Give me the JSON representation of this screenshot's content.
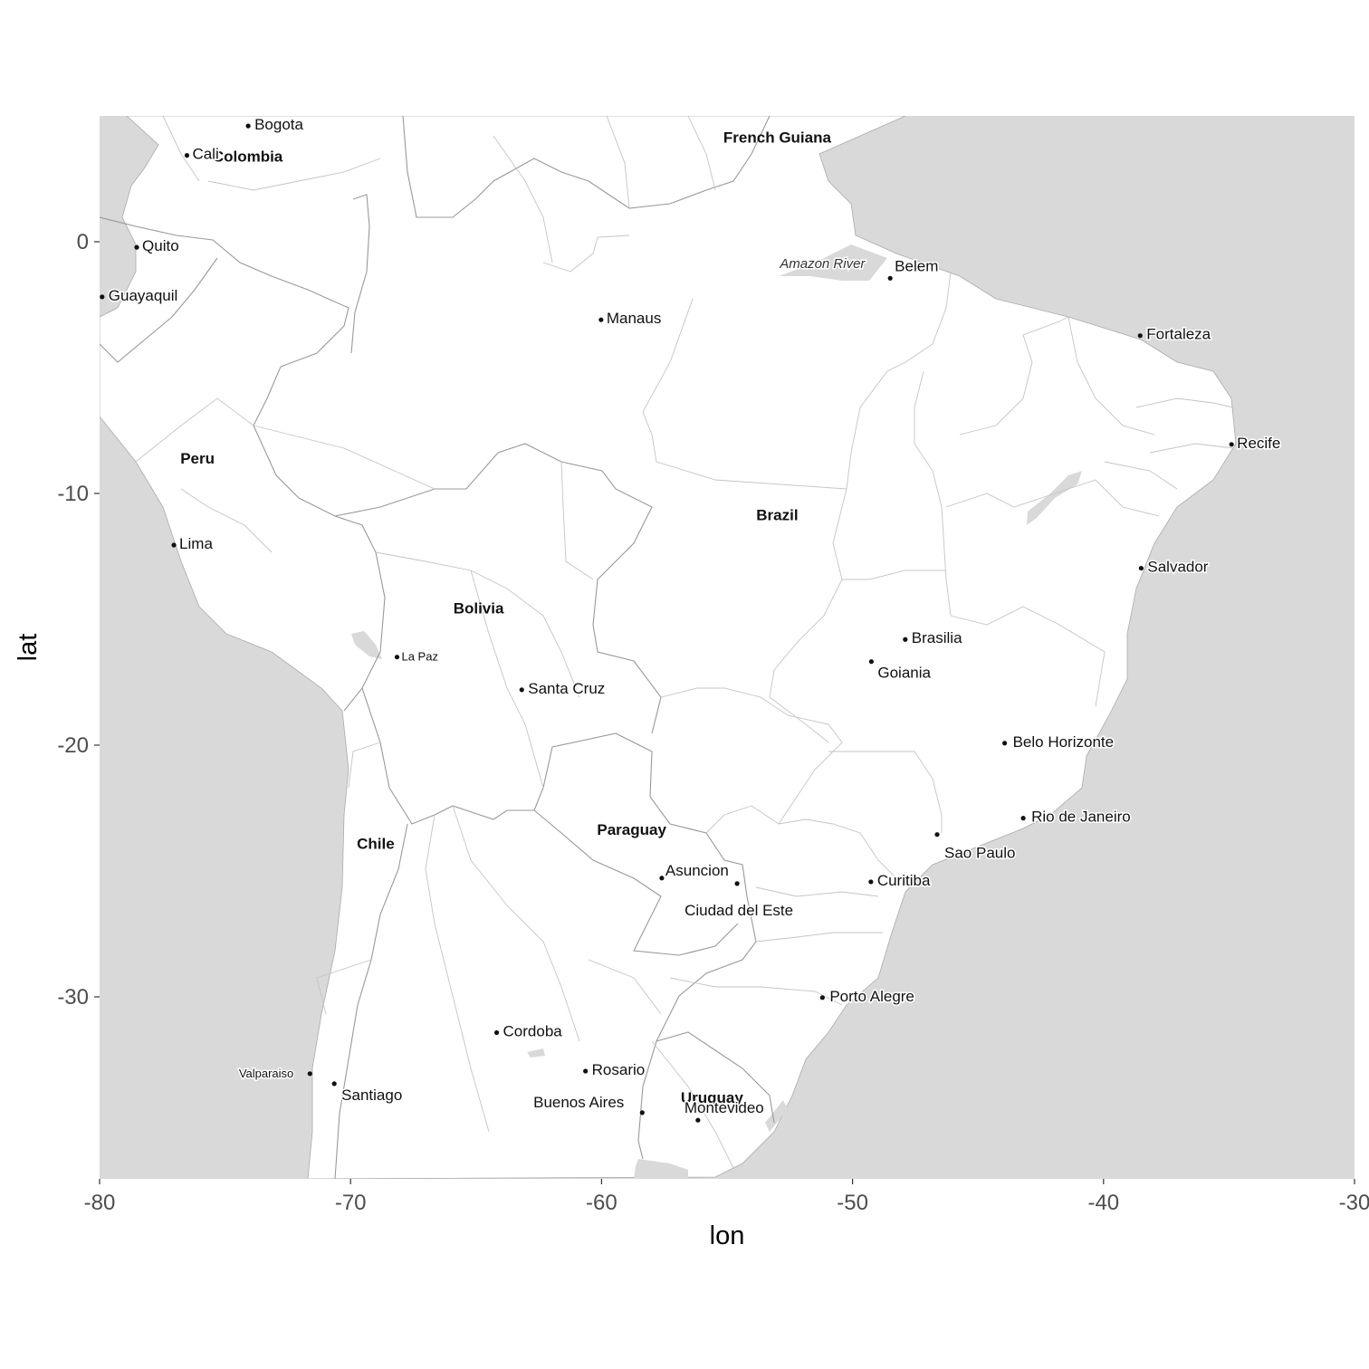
{
  "map": {
    "xlabel": "lon",
    "ylabel": "lat",
    "xlim": [
      -80,
      -30
    ],
    "ylim": [
      -37.5,
      4.9
    ],
    "x_ticks": [
      -80,
      -70,
      -60,
      -50,
      -40,
      -30
    ],
    "y_ticks": [
      0,
      -10,
      -20,
      -30
    ],
    "colors": {
      "ocean": "#d9d9d9",
      "land": "#ffffff",
      "country_border": "#999999",
      "state_border": "#c4c4c4",
      "point": "#111111"
    },
    "countries": [
      {
        "name": "Colombia",
        "lon": -74.1,
        "lat": 3.4
      },
      {
        "name": "French Guiana",
        "lon": -53.0,
        "lat": 4.15
      },
      {
        "name": "Peru",
        "lon": -76.1,
        "lat": -8.6
      },
      {
        "name": "Brazil",
        "lon": -53.0,
        "lat": -10.85
      },
      {
        "name": "Bolivia",
        "lon": -64.9,
        "lat": -14.55
      },
      {
        "name": "Chile",
        "lon": -69.0,
        "lat": -23.9
      },
      {
        "name": "Paraguay",
        "lon": -58.8,
        "lat": -23.35
      },
      {
        "name": "Uruguay",
        "lon": -55.6,
        "lat": -34.0
      }
    ],
    "cities": [
      {
        "name": "Bogota",
        "lon": -74.08,
        "lat": 4.6
      },
      {
        "name": "Cali",
        "lon": -76.52,
        "lat": 3.43
      },
      {
        "name": "Quito",
        "lon": -78.52,
        "lat": -0.22
      },
      {
        "name": "Guayaquil",
        "lon": -79.9,
        "lat": -2.19
      },
      {
        "name": "Manaus",
        "lon": -60.02,
        "lat": -3.1
      },
      {
        "name": "Belem",
        "lon": -48.5,
        "lat": -1.45
      },
      {
        "name": "Fortaleza",
        "lon": -38.54,
        "lat": -3.73
      },
      {
        "name": "Recife",
        "lon": -34.9,
        "lat": -8.05
      },
      {
        "name": "Lima",
        "lon": -77.04,
        "lat": -12.05
      },
      {
        "name": "Salvador",
        "lon": -38.5,
        "lat": -12.97
      },
      {
        "name": "Brasilia",
        "lon": -47.9,
        "lat": -15.8
      },
      {
        "name": "La Paz",
        "lon": -68.15,
        "lat": -16.5
      },
      {
        "name": "Goiania",
        "lon": -49.25,
        "lat": -16.68
      },
      {
        "name": "Santa Cruz",
        "lon": -63.18,
        "lat": -17.8
      },
      {
        "name": "Belo Horizonte",
        "lon": -43.94,
        "lat": -19.92
      },
      {
        "name": "Rio de Janeiro",
        "lon": -43.2,
        "lat": -22.9
      },
      {
        "name": "Sao Paulo",
        "lon": -46.63,
        "lat": -23.55
      },
      {
        "name": "Asuncion",
        "lon": -57.6,
        "lat": -25.28
      },
      {
        "name": "Ciudad del Este",
        "lon": -54.6,
        "lat": -25.5
      },
      {
        "name": "Curitiba",
        "lon": -49.27,
        "lat": -25.43
      },
      {
        "name": "Porto Alegre",
        "lon": -51.2,
        "lat": -30.03
      },
      {
        "name": "Cordoba",
        "lon": -64.18,
        "lat": -31.42
      },
      {
        "name": "Rosario",
        "lon": -60.64,
        "lat": -32.95
      },
      {
        "name": "Valparaiso",
        "lon": -71.62,
        "lat": -33.05
      },
      {
        "name": "Santiago",
        "lon": -70.65,
        "lat": -33.45
      },
      {
        "name": "Buenos Aires",
        "lon": -58.38,
        "lat": -34.6
      },
      {
        "name": "Montevideo",
        "lon": -56.16,
        "lat": -34.9
      }
    ],
    "water_labels": [
      {
        "name": "Amazon River",
        "lon": -51.2,
        "lat": -1.05
      }
    ]
  }
}
